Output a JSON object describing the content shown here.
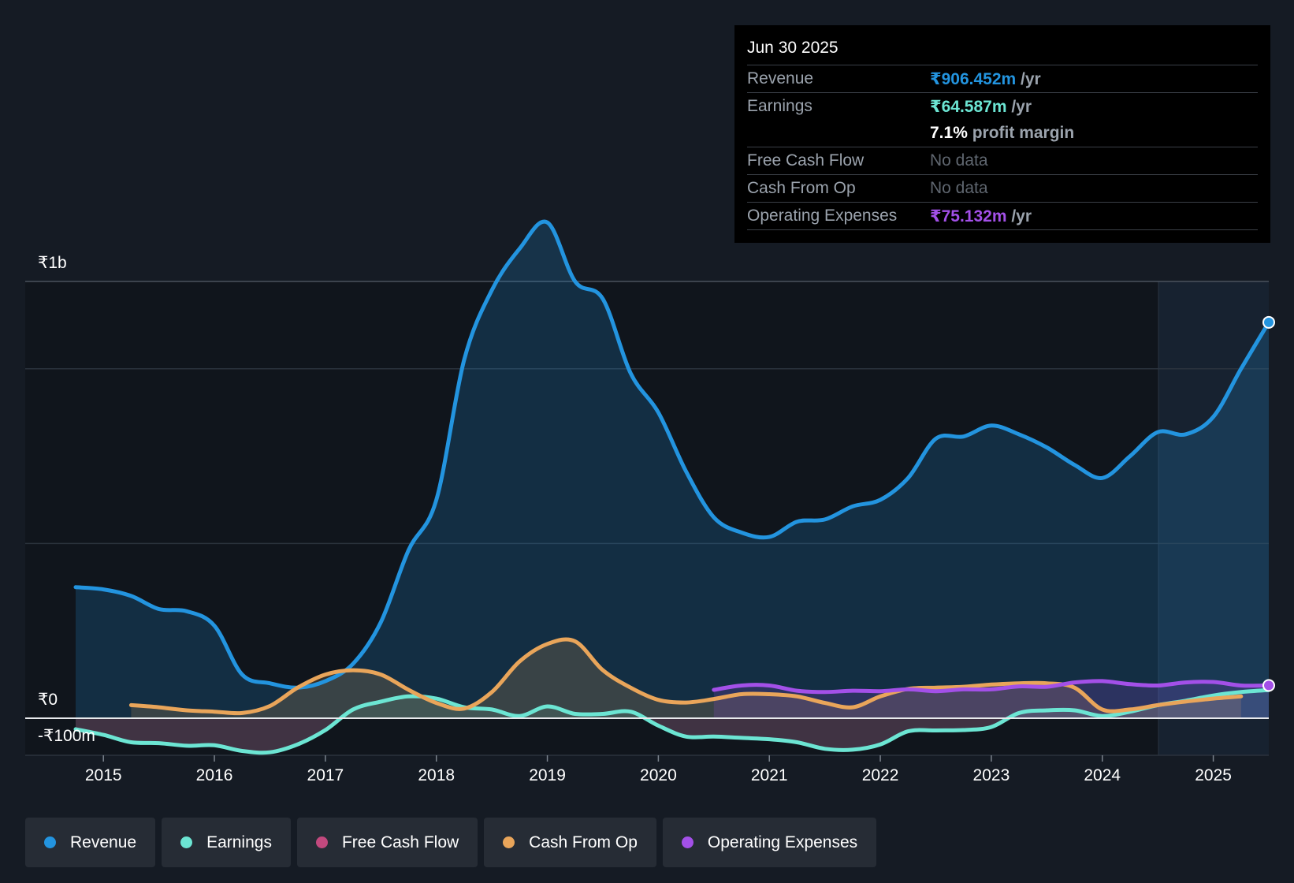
{
  "tooltip": {
    "date": "Jun 30 2025",
    "revenue": {
      "label": "Revenue",
      "value": "₹906.452m",
      "unit": " /yr"
    },
    "earnings": {
      "label": "Earnings",
      "value": "₹64.587m",
      "unit": " /yr"
    },
    "margin": {
      "value": "7.1%",
      "text": " profit margin"
    },
    "fcf": {
      "label": "Free Cash Flow",
      "value": "No data"
    },
    "cfo": {
      "label": "Cash From Op",
      "value": "No data"
    },
    "opex": {
      "label": "Operating Expenses",
      "value": "₹75.132m",
      "unit": " /yr"
    }
  },
  "legend": [
    {
      "label": "Revenue",
      "color": "#2394df"
    },
    {
      "label": "Earnings",
      "color": "#6ce5d3"
    },
    {
      "label": "Free Cash Flow",
      "color": "#c2497e"
    },
    {
      "label": "Cash From Op",
      "color": "#e9a55a"
    },
    {
      "label": "Operating Expenses",
      "color": "#a350e8"
    }
  ],
  "chart_data": {
    "type": "line",
    "y_labels": {
      "top": "₹1b",
      "zero": "₹0",
      "bottom": "-₹100m"
    },
    "ylim": [
      -100,
      1200
    ],
    "xlim": [
      2014.75,
      2025.5
    ],
    "x_ticks": [
      "2015",
      "2016",
      "2017",
      "2018",
      "2019",
      "2020",
      "2021",
      "2022",
      "2023",
      "2024",
      "2025"
    ],
    "gridlines": [
      0,
      500,
      1000
    ],
    "forecast_start": 2024.5,
    "series": [
      {
        "name": "Revenue",
        "color": "#2394df",
        "points": [
          [
            2014.75,
            300
          ],
          [
            2015,
            295
          ],
          [
            2015.25,
            280
          ],
          [
            2015.5,
            250
          ],
          [
            2015.75,
            245
          ],
          [
            2016,
            212
          ],
          [
            2016.25,
            100
          ],
          [
            2016.5,
            80
          ],
          [
            2016.75,
            70
          ],
          [
            2017,
            85
          ],
          [
            2017.25,
            125
          ],
          [
            2017.5,
            220
          ],
          [
            2017.75,
            385
          ],
          [
            2018,
            500
          ],
          [
            2018.25,
            820
          ],
          [
            2018.5,
            980
          ],
          [
            2018.75,
            1075
          ],
          [
            2019,
            1135
          ],
          [
            2019.25,
            1000
          ],
          [
            2019.5,
            960
          ],
          [
            2019.75,
            790
          ],
          [
            2020,
            700
          ],
          [
            2020.25,
            565
          ],
          [
            2020.5,
            460
          ],
          [
            2020.75,
            425
          ],
          [
            2021,
            415
          ],
          [
            2021.25,
            450
          ],
          [
            2021.5,
            455
          ],
          [
            2021.75,
            485
          ],
          [
            2022,
            500
          ],
          [
            2022.25,
            550
          ],
          [
            2022.5,
            640
          ],
          [
            2022.75,
            645
          ],
          [
            2023,
            670
          ],
          [
            2023.25,
            650
          ],
          [
            2023.5,
            620
          ],
          [
            2023.75,
            580
          ],
          [
            2024,
            550
          ],
          [
            2024.25,
            600
          ],
          [
            2024.5,
            655
          ],
          [
            2024.75,
            650
          ],
          [
            2025,
            690
          ],
          [
            2025.25,
            800
          ],
          [
            2025.5,
            906.452
          ]
        ]
      },
      {
        "name": "Earnings",
        "color": "#6ce5d3",
        "points": [
          [
            2014.75,
            -25
          ],
          [
            2015,
            -38
          ],
          [
            2015.25,
            -55
          ],
          [
            2015.5,
            -57
          ],
          [
            2015.75,
            -63
          ],
          [
            2016,
            -62
          ],
          [
            2016.25,
            -75
          ],
          [
            2016.5,
            -78
          ],
          [
            2016.75,
            -60
          ],
          [
            2017,
            -27
          ],
          [
            2017.25,
            20
          ],
          [
            2017.5,
            38
          ],
          [
            2017.75,
            50
          ],
          [
            2018,
            45
          ],
          [
            2018.25,
            25
          ],
          [
            2018.5,
            20
          ],
          [
            2018.75,
            5
          ],
          [
            2019,
            27
          ],
          [
            2019.25,
            10
          ],
          [
            2019.5,
            10
          ],
          [
            2019.75,
            15
          ],
          [
            2020,
            -17
          ],
          [
            2020.25,
            -42
          ],
          [
            2020.5,
            -42
          ],
          [
            2020.75,
            -45
          ],
          [
            2021,
            -48
          ],
          [
            2021.25,
            -55
          ],
          [
            2021.5,
            -70
          ],
          [
            2021.75,
            -72
          ],
          [
            2022,
            -60
          ],
          [
            2022.25,
            -30
          ],
          [
            2022.5,
            -28
          ],
          [
            2022.75,
            -27
          ],
          [
            2023,
            -20
          ],
          [
            2023.25,
            12
          ],
          [
            2023.5,
            18
          ],
          [
            2023.75,
            18
          ],
          [
            2024,
            5
          ],
          [
            2024.25,
            15
          ],
          [
            2024.5,
            30
          ],
          [
            2024.75,
            40
          ],
          [
            2025,
            52
          ],
          [
            2025.25,
            60
          ],
          [
            2025.5,
            64.587
          ]
        ]
      },
      {
        "name": "Cash From Op",
        "color": "#e9a55a",
        "points": [
          [
            2015.25,
            30
          ],
          [
            2015.5,
            25
          ],
          [
            2015.75,
            18
          ],
          [
            2016,
            15
          ],
          [
            2016.25,
            12
          ],
          [
            2016.5,
            28
          ],
          [
            2016.75,
            70
          ],
          [
            2017,
            100
          ],
          [
            2017.25,
            110
          ],
          [
            2017.5,
            100
          ],
          [
            2017.75,
            65
          ],
          [
            2018,
            35
          ],
          [
            2018.25,
            22
          ],
          [
            2018.5,
            60
          ],
          [
            2018.75,
            130
          ],
          [
            2019,
            170
          ],
          [
            2019.25,
            176
          ],
          [
            2019.5,
            110
          ],
          [
            2019.75,
            70
          ],
          [
            2020,
            42
          ],
          [
            2020.25,
            36
          ],
          [
            2020.5,
            44
          ],
          [
            2020.75,
            55
          ],
          [
            2021,
            55
          ],
          [
            2021.25,
            50
          ],
          [
            2021.5,
            35
          ],
          [
            2021.75,
            25
          ],
          [
            2022,
            50
          ],
          [
            2022.25,
            67
          ],
          [
            2022.5,
            70
          ],
          [
            2022.75,
            72
          ],
          [
            2023,
            77
          ],
          [
            2023.25,
            80
          ],
          [
            2023.5,
            80
          ],
          [
            2023.75,
            70
          ],
          [
            2024,
            20
          ],
          [
            2024.25,
            20
          ],
          [
            2024.5,
            30
          ],
          [
            2024.75,
            38
          ],
          [
            2025,
            45
          ],
          [
            2025.25,
            50
          ]
        ]
      },
      {
        "name": "Operating Expenses",
        "color": "#a350e8",
        "points": [
          [
            2020.5,
            65
          ],
          [
            2020.75,
            75
          ],
          [
            2021,
            75
          ],
          [
            2021.25,
            63
          ],
          [
            2021.5,
            60
          ],
          [
            2021.75,
            63
          ],
          [
            2022,
            62
          ],
          [
            2022.25,
            66
          ],
          [
            2022.5,
            62
          ],
          [
            2022.75,
            66
          ],
          [
            2023,
            66
          ],
          [
            2023.25,
            73
          ],
          [
            2023.5,
            72
          ],
          [
            2023.75,
            82
          ],
          [
            2024,
            85
          ],
          [
            2024.25,
            78
          ],
          [
            2024.5,
            75
          ],
          [
            2024.75,
            82
          ],
          [
            2025,
            83
          ],
          [
            2025.25,
            75
          ],
          [
            2025.5,
            75.132
          ]
        ]
      }
    ]
  }
}
